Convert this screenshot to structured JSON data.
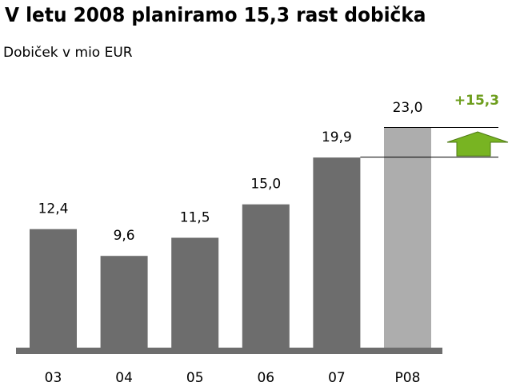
{
  "title": "V letu 2008 planiramo 15,3 rast dobička",
  "subtitle": "Dobiček v mio EUR",
  "chart_data": {
    "type": "bar",
    "categories": [
      "03",
      "04",
      "05",
      "06",
      "07",
      "P08"
    ],
    "values": [
      12.4,
      9.6,
      11.5,
      15.0,
      19.9,
      23.0
    ],
    "value_labels": [
      "12,4",
      "9,6",
      "11,5",
      "15,0",
      "19,9",
      "23,0"
    ],
    "projected_category": "P08",
    "increase_label": "+15,3",
    "ylim": [
      0,
      23.0
    ],
    "grid": false,
    "legend": "none",
    "xlabel": "",
    "ylabel": ""
  },
  "colors": {
    "bar": "#6d6d6d",
    "bar_projected": "#adadad",
    "axis": "#6d6d6d",
    "increase": "#6e9e1e",
    "arrow": "#78b422",
    "arrow_stroke": "#4e7a14",
    "connector": "#000000"
  }
}
